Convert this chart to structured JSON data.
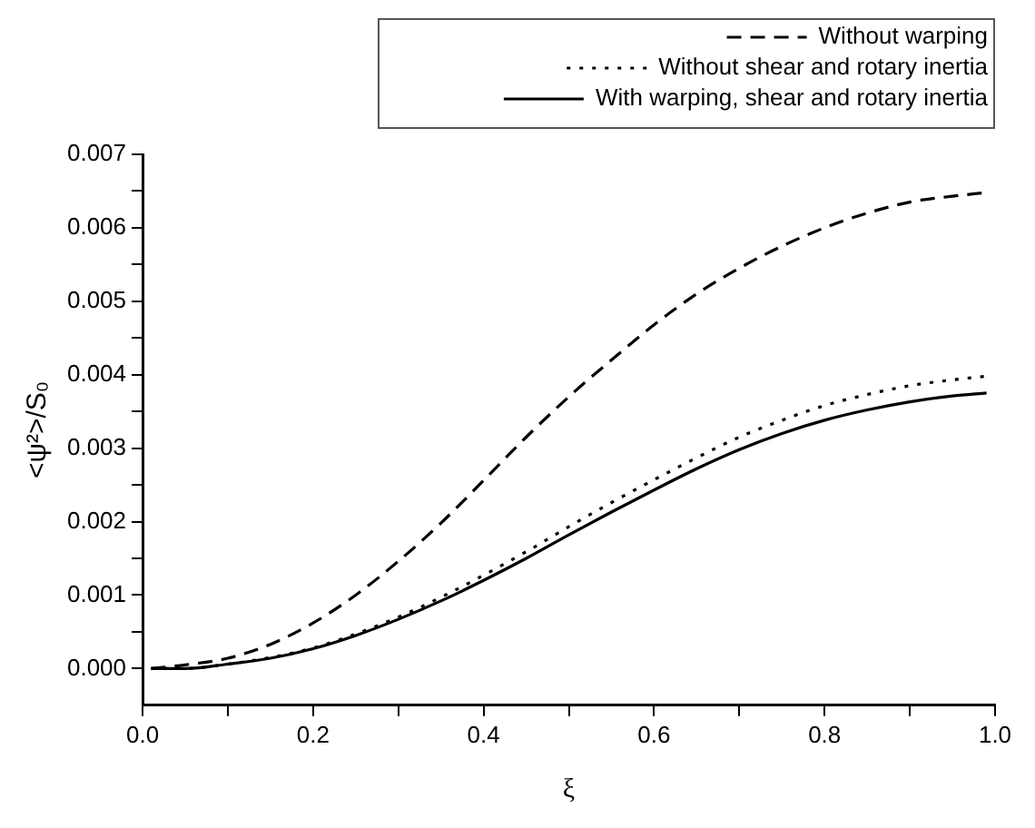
{
  "chart_data": {
    "type": "line",
    "xlabel": "ξ",
    "ylabel": "<ψ²>/S₀",
    "xlim": [
      0,
      1
    ],
    "ylim": [
      -0.0005,
      0.007
    ],
    "xticks": [
      {
        "value": 0,
        "label": "0.0"
      },
      {
        "value": 0.1,
        "label": null
      },
      {
        "value": 0.2,
        "label": "0.2"
      },
      {
        "value": 0.3,
        "label": null
      },
      {
        "value": 0.4,
        "label": "0.4"
      },
      {
        "value": 0.5,
        "label": null
      },
      {
        "value": 0.6,
        "label": "0.6"
      },
      {
        "value": 0.7,
        "label": null
      },
      {
        "value": 0.8,
        "label": "0.8"
      },
      {
        "value": 0.9,
        "label": null
      },
      {
        "value": 1,
        "label": "1.0"
      }
    ],
    "yticks": [
      {
        "value": 0,
        "label": "0.000"
      },
      {
        "value": 0.0005,
        "label": null
      },
      {
        "value": 0.001,
        "label": "0.001"
      },
      {
        "value": 0.0015,
        "label": null
      },
      {
        "value": 0.002,
        "label": "0.002"
      },
      {
        "value": 0.0025,
        "label": null
      },
      {
        "value": 0.003,
        "label": "0.003"
      },
      {
        "value": 0.0035,
        "label": null
      },
      {
        "value": 0.004,
        "label": "0.004"
      },
      {
        "value": 0.0045,
        "label": null
      },
      {
        "value": 0.005,
        "label": "0.005"
      },
      {
        "value": 0.0055,
        "label": null
      },
      {
        "value": 0.006,
        "label": "0.006"
      },
      {
        "value": 0.0065,
        "label": null
      },
      {
        "value": 0.007,
        "label": "0.007"
      }
    ],
    "grid": false,
    "legend": "top right",
    "marker": "none",
    "x": [
      0.01,
      0.05,
      0.1,
      0.15,
      0.2,
      0.25,
      0.3,
      0.35,
      0.4,
      0.45,
      0.5,
      0.55,
      0.6,
      0.65,
      0.7,
      0.75,
      0.8,
      0.85,
      0.9,
      0.95,
      0.99
    ],
    "series": [
      {
        "name": "Without warping",
        "color": "#000000",
        "line_style": "dashed",
        "values": [
          0,
          5e-05,
          0.00014,
          0.00033,
          0.00062,
          0.001,
          0.00146,
          0.00198,
          0.00256,
          0.00315,
          0.0037,
          0.0042,
          0.00468,
          0.0051,
          0.00545,
          0.00575,
          0.006,
          0.0062,
          0.00635,
          0.00643,
          0.00648
        ]
      },
      {
        "name": "Without shear and rotary inertia",
        "color": "#000000",
        "line_style": "dotted",
        "values": [
          0,
          0,
          6e-05,
          0.00015,
          0.00028,
          0.00047,
          0.0007,
          0.00097,
          0.00127,
          0.00159,
          0.00193,
          0.00226,
          0.00257,
          0.00287,
          0.00315,
          0.00338,
          0.00358,
          0.00373,
          0.00385,
          0.00393,
          0.00398
        ]
      },
      {
        "name": "With warping, shear and rotary inertia",
        "color": "#000000",
        "line_style": "solid",
        "values": [
          0,
          0,
          6e-05,
          0.00014,
          0.00027,
          0.00045,
          0.00067,
          0.00092,
          0.0012,
          0.0015,
          0.00182,
          0.00213,
          0.00243,
          0.00272,
          0.00298,
          0.0032,
          0.00338,
          0.00352,
          0.00363,
          0.00371,
          0.00375
        ]
      }
    ]
  }
}
